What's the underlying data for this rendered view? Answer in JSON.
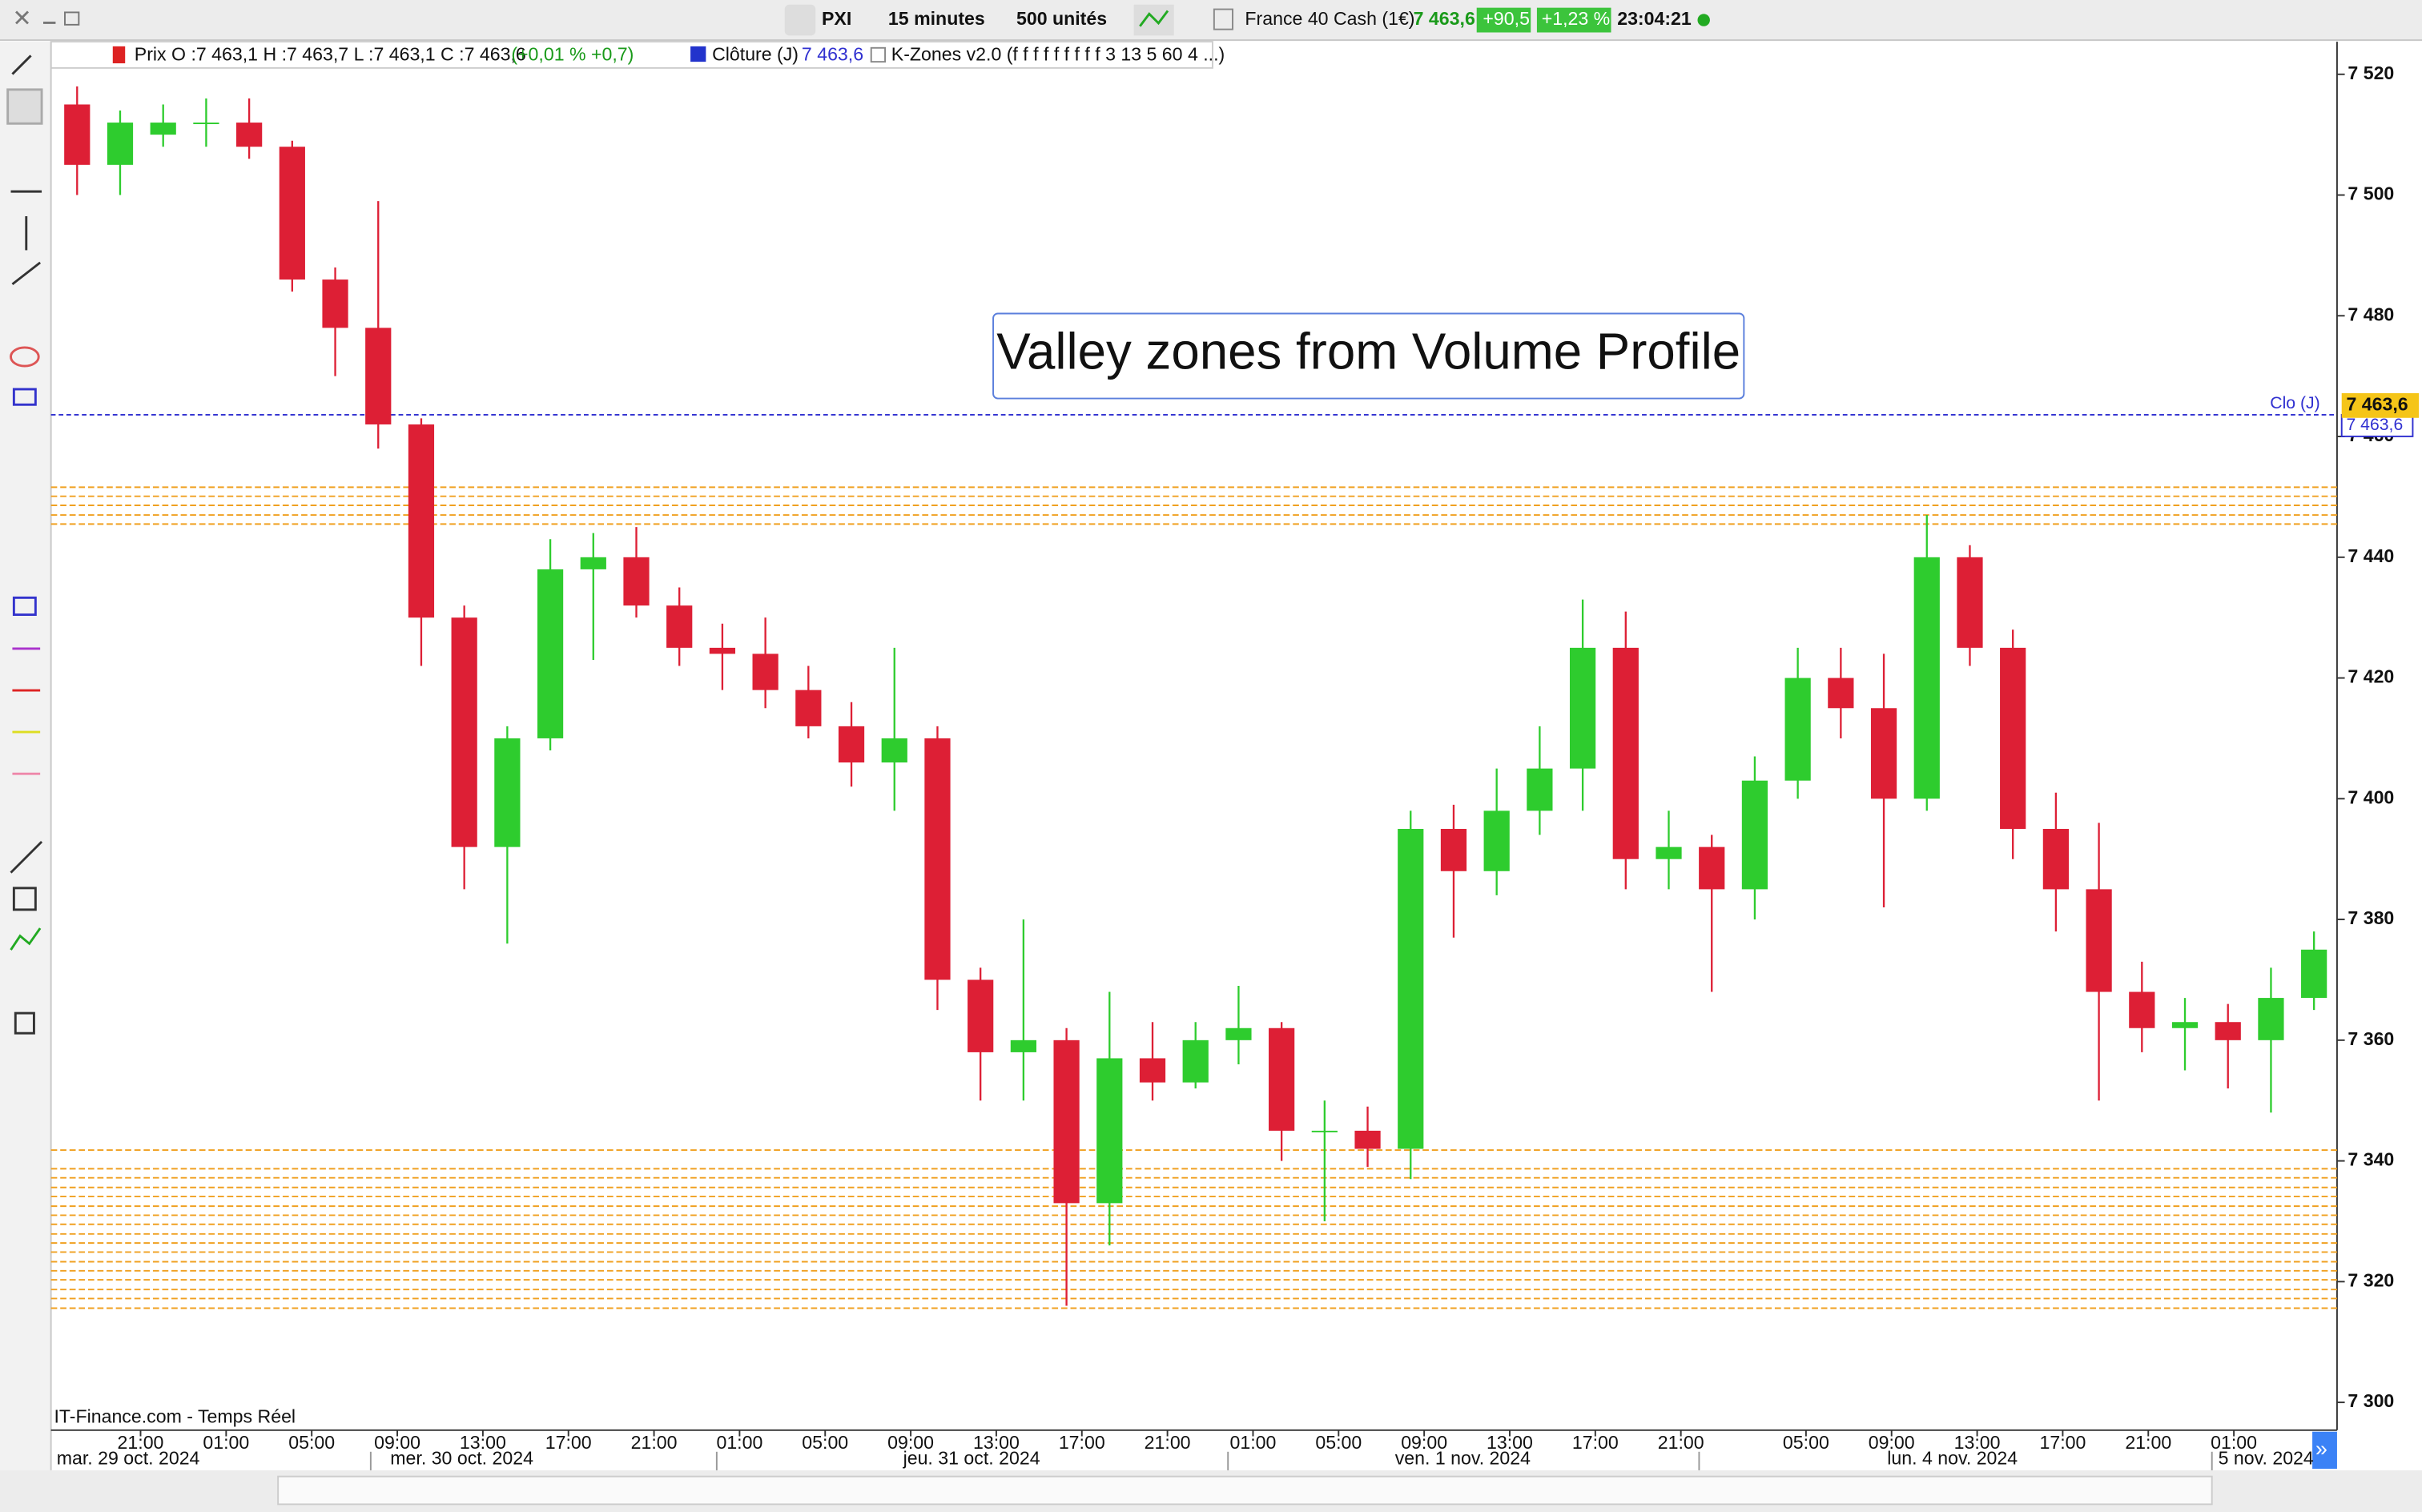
{
  "toolbar": {
    "symbol": "PXI",
    "interval": "15 minutes",
    "units": "500 unités",
    "instrument": "France 40 Cash (1€)",
    "last": "7 463,6",
    "change": "+90,5",
    "change_pct": "+1,23 %",
    "time": "23:04:21"
  },
  "legend": {
    "price": "Prix O :7 463,1 H :7 463,7 L :7 463,1 C :7 463,6",
    "price_change": "(+0,01 % +0,7)",
    "close_name": "Clôture (J)",
    "close_value": "7 463,6",
    "indicator": "K-Zones v2.0 (f f f f f f f f f 3 13 5 60 4 ...)"
  },
  "footer": {
    "source": "IT-Finance.com - Temps Réel"
  },
  "chart_data": {
    "type": "candlestick",
    "annotation": "Valley zones from Volume Profile",
    "up_color": "#2ecc2e",
    "down_color": "#dd1f35",
    "zone_color": "#f0a020",
    "close_color": "#3030d0",
    "open": [
      7515,
      7505,
      7510,
      7512,
      7512,
      7508,
      7486,
      7478,
      7462,
      7430,
      7392,
      7410,
      7438,
      7440,
      7432,
      7425,
      7424,
      7418,
      7412,
      7406,
      7410,
      7370,
      7358,
      7360,
      7333,
      7357,
      7353,
      7360,
      7362,
      7345,
      7345,
      7342,
      7395,
      7388,
      7398,
      7405,
      7425,
      7390,
      7392,
      7385,
      7403,
      7420,
      7415,
      7400,
      7440,
      7425,
      7395,
      7385,
      7368,
      7362,
      7363,
      7360,
      7367
    ],
    "high": [
      7518,
      7514,
      7515,
      7516,
      7516,
      7509,
      7488,
      7499,
      7463,
      7432,
      7412,
      7443,
      7444,
      7445,
      7435,
      7429,
      7430,
      7422,
      7416,
      7425,
      7412,
      7372,
      7380,
      7362,
      7368,
      7363,
      7363,
      7369,
      7363,
      7350,
      7349,
      7398,
      7399,
      7405,
      7412,
      7433,
      7431,
      7398,
      7394,
      7407,
      7425,
      7425,
      7424,
      7447,
      7442,
      7428,
      7401,
      7396,
      7373,
      7367,
      7366,
      7372,
      7378
    ],
    "low": [
      7500,
      7500,
      7508,
      7508,
      7506,
      7484,
      7470,
      7458,
      7422,
      7385,
      7376,
      7408,
      7423,
      7430,
      7422,
      7418,
      7415,
      7410,
      7402,
      7398,
      7365,
      7350,
      7350,
      7316,
      7326,
      7350,
      7352,
      7356,
      7340,
      7330,
      7339,
      7337,
      7377,
      7384,
      7394,
      7398,
      7385,
      7385,
      7368,
      7380,
      7400,
      7410,
      7382,
      7398,
      7422,
      7390,
      7378,
      7350,
      7358,
      7355,
      7352,
      7348,
      7365
    ],
    "close": [
      7505,
      7512,
      7512,
      7512,
      7508,
      7486,
      7478,
      7462,
      7430,
      7392,
      7410,
      7438,
      7440,
      7432,
      7425,
      7424,
      7418,
      7412,
      7406,
      7410,
      7370,
      7358,
      7360,
      7333,
      7357,
      7353,
      7360,
      7362,
      7345,
      7345,
      7342,
      7395,
      7388,
      7398,
      7405,
      7425,
      7390,
      7392,
      7385,
      7403,
      7420,
      7415,
      7400,
      7440,
      7425,
      7395,
      7385,
      7368,
      7362,
      7363,
      7360,
      7367,
      7375
    ],
    "zones": [
      7451.6,
      7450.1,
      7448.6,
      7447.0,
      7445.5,
      7341.8,
      7338.7,
      7337.2,
      7335.6,
      7334.1,
      7332.5,
      7331.0,
      7329.5,
      7327.9,
      7326.4,
      7324.9,
      7323.3,
      7321.8,
      7320.3,
      7318.7,
      7317.2,
      7315.6
    ],
    "close_line": {
      "value": 7463.6,
      "label": "Clo (J)",
      "value_label": "7 463,6"
    },
    "last_price": {
      "value": 7463.6,
      "value_label": "7 463,6"
    },
    "ylim": [
      7295.4,
      7525.4
    ],
    "yticks": [
      {
        "value": 7300,
        "label": "7 300"
      },
      {
        "value": 7320,
        "label": "7 320"
      },
      {
        "value": 7340,
        "label": "7 340"
      },
      {
        "value": 7360,
        "label": "7 360"
      },
      {
        "value": 7380,
        "label": "7 380"
      },
      {
        "value": 7400,
        "label": "7 400"
      },
      {
        "value": 7420,
        "label": "7 420"
      },
      {
        "value": 7440,
        "label": "7 440"
      },
      {
        "value": 7460,
        "label": "7 460"
      },
      {
        "value": 7480,
        "label": "7 480"
      },
      {
        "value": 7500,
        "label": "7 500"
      },
      {
        "value": 7520,
        "label": "7 520"
      }
    ],
    "time_labels": [
      "21:00",
      "01:00",
      "05:00",
      "09:00",
      "13:00",
      "17:00",
      "21:00",
      "01:00",
      "05:00",
      "09:00",
      "13:00",
      "17:00",
      "21:00",
      "01:00",
      "05:00",
      "09:00",
      "13:00",
      "17:00",
      "21:00",
      "05:00",
      "09:00",
      "13:00",
      "17:00",
      "21:00",
      "01:00"
    ],
    "date_labels": [
      "mar. 29 oct. 2024",
      "mer. 30 oct. 2024",
      "jeu. 31 oct. 2024",
      "ven. 1 nov. 2024",
      "lun. 4 nov. 2024",
      "5 nov. 2024"
    ]
  }
}
